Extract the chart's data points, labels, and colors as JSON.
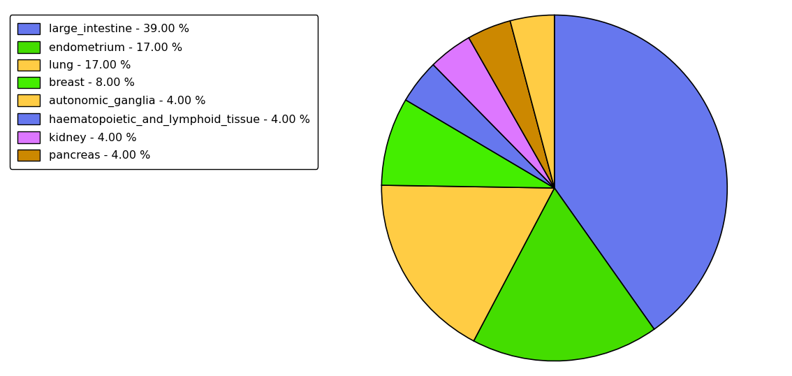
{
  "labels": [
    "large_intestine",
    "endometrium",
    "lung",
    "breast",
    "haematopoietic_and_lymphoid_tissue",
    "kidney",
    "pancreas",
    "autonomic_ganglia"
  ],
  "values": [
    39,
    17,
    17,
    8,
    4,
    4,
    4,
    4
  ],
  "colors": [
    "#6677ee",
    "#44dd00",
    "#ffcc44",
    "#44ee00",
    "#6677ee",
    "#dd77ff",
    "#cc8800",
    "#ffcc44"
  ],
  "legend_order_labels": [
    "large_intestine - 39.00 %",
    "endometrium - 17.00 %",
    "lung - 17.00 %",
    "breast - 8.00 %",
    "autonomic_ganglia - 4.00 %",
    "haematopoietic_and_lymphoid_tissue - 4.00 %",
    "kidney - 4.00 %",
    "pancreas - 4.00 %"
  ],
  "legend_order_colors": [
    "#6677ee",
    "#44dd00",
    "#ffcc44",
    "#44ee00",
    "#ffcc44",
    "#6677ee",
    "#dd77ff",
    "#cc8800"
  ],
  "startangle": 90,
  "figsize": [
    11.34,
    5.38
  ],
  "dpi": 100
}
